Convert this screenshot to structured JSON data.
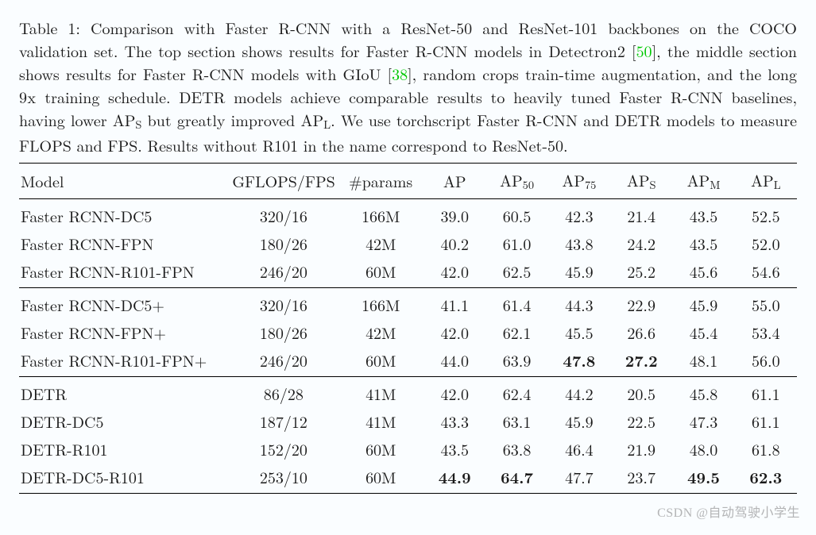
{
  "caption": {
    "pre": "Table 1: Comparison with Faster R-CNN with a ResNet-50 and ResNet-101 backbones on the COCO validation set. The top section shows results for Faster R-CNN models in Detectron2 [",
    "cite1": "50",
    "mid1": "], the middle section shows results for Faster R-CNN models with GIoU [",
    "cite2": "38",
    "mid2": "], random crops train-time augmentation, and the long ",
    "mono": "9x",
    "post": " training schedule. DETR models achieve comparable results to heavily tuned Faster R-CNN baselines, having lower AP",
    "subS": "S",
    "post2": " but greatly improved AP",
    "subL": "L",
    "post3": ". We use torchscript Faster R-CNN and DETR models to measure FLOPS and FPS. Results without R101 in the name correspond to ResNet-50."
  },
  "header": {
    "model": "Model",
    "gflops": "GFLOPS/FPS",
    "params": "#params",
    "ap": "AP",
    "ap50_pre": "AP",
    "ap50_sub": "50",
    "ap75_pre": "AP",
    "ap75_sub": "75",
    "aps_pre": "AP",
    "aps_sub": "S",
    "apm_pre": "AP",
    "apm_sub": "M",
    "apl_pre": "AP",
    "apl_sub": "L"
  },
  "sections": [
    {
      "rows": [
        {
          "model": "Faster RCNN-DC5",
          "gflops": "320/16",
          "params": "166M",
          "ap": "39.0",
          "ap50": "60.5",
          "ap75": "42.3",
          "aps": "21.4",
          "apm": "43.5",
          "apl": "52.5"
        },
        {
          "model": "Faster RCNN-FPN",
          "gflops": "180/26",
          "params": "42M",
          "ap": "40.2",
          "ap50": "61.0",
          "ap75": "43.8",
          "aps": "24.2",
          "apm": "43.5",
          "apl": "52.0"
        },
        {
          "model": "Faster RCNN-R101-FPN",
          "gflops": "246/20",
          "params": "60M",
          "ap": "42.0",
          "ap50": "62.5",
          "ap75": "45.9",
          "aps": "25.2",
          "apm": "45.6",
          "apl": "54.6"
        }
      ]
    },
    {
      "rows": [
        {
          "model": "Faster RCNN-DC5+",
          "gflops": "320/16",
          "params": "166M",
          "ap": "41.1",
          "ap50": "61.4",
          "ap75": "44.3",
          "aps": "22.9",
          "apm": "45.9",
          "apl": "55.0"
        },
        {
          "model": "Faster RCNN-FPN+",
          "gflops": "180/26",
          "params": "42M",
          "ap": "42.0",
          "ap50": "62.1",
          "ap75": "45.5",
          "aps": "26.6",
          "apm": "45.4",
          "apl": "53.4"
        },
        {
          "model": "Faster RCNN-R101-FPN+",
          "gflops": "246/20",
          "params": "60M",
          "ap": "44.0",
          "ap50": "63.9",
          "ap75": "47.8",
          "ap75_bold": true,
          "aps": "27.2",
          "aps_bold": true,
          "apm": "48.1",
          "apl": "56.0"
        }
      ]
    },
    {
      "rows": [
        {
          "model": "DETR",
          "gflops": "86/28",
          "params": "41M",
          "ap": "42.0",
          "ap50": "62.4",
          "ap75": "44.2",
          "aps": "20.5",
          "apm": "45.8",
          "apl": "61.1"
        },
        {
          "model": "DETR-DC5",
          "gflops": "187/12",
          "params": "41M",
          "ap": "43.3",
          "ap50": "63.1",
          "ap75": "45.9",
          "aps": "22.5",
          "apm": "47.3",
          "apl": "61.1"
        },
        {
          "model": "DETR-R101",
          "gflops": "152/20",
          "params": "60M",
          "ap": "43.5",
          "ap50": "63.8",
          "ap75": "46.4",
          "aps": "21.9",
          "apm": "48.0",
          "apl": "61.8"
        },
        {
          "model": "DETR-DC5-R101",
          "gflops": "253/10",
          "params": "60M",
          "ap": "44.9",
          "ap_bold": true,
          "ap50": "64.7",
          "ap50_bold": true,
          "ap75": "47.7",
          "aps": "23.7",
          "apm": "49.5",
          "apm_bold": true,
          "apl": "62.3",
          "apl_bold": true
        }
      ]
    }
  ],
  "style": {
    "background_color": "#fafdff",
    "text_color": "#1a1a1a",
    "cite_color": "#00c800",
    "rule_color": "#000000",
    "font_size_pt": 20
  },
  "watermark": "CSDN @自动驾驶小学生"
}
